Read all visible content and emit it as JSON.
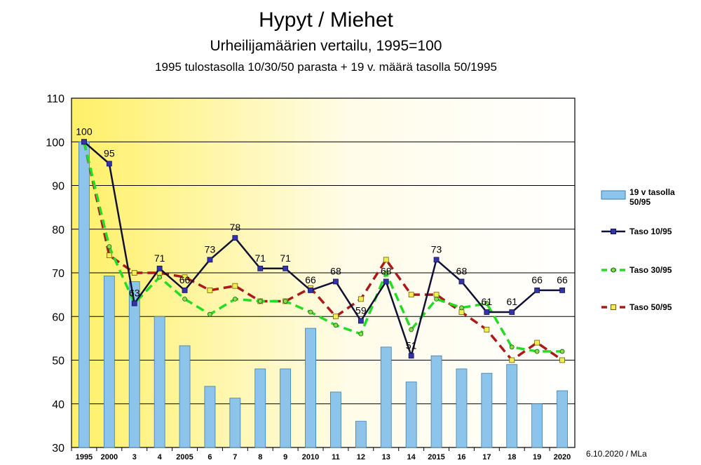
{
  "title": "Hypyt / Miehet",
  "subtitle": "Urheilijamäärien vertailu, 1995=100",
  "subtitle2": "1995 tulostasolla 10/30/50 parasta + 19 v. määrä tasolla 50/1995",
  "footer": "6.10.2020 / MLa",
  "chart_data": {
    "type": "bar",
    "categories": [
      "1995",
      "2000",
      "3",
      "4",
      "2005",
      "6",
      "7",
      "8",
      "9",
      "2010",
      "11",
      "12",
      "13",
      "14",
      "2015",
      "16",
      "17",
      "18",
      "19",
      "2020"
    ],
    "ylim": [
      30,
      110
    ],
    "yticks": [
      30,
      40,
      50,
      60,
      70,
      80,
      90,
      100,
      110
    ],
    "grid": true,
    "legend_position": "right",
    "series": [
      {
        "name": "19 v tasolla 50/95",
        "kind": "bar",
        "color": "#8DC4EC",
        "values": [
          100,
          69.3,
          68,
          60,
          53.3,
          44,
          41.3,
          48,
          48,
          57.3,
          42.7,
          36,
          53,
          45,
          51,
          48,
          47,
          49,
          40,
          43
        ]
      },
      {
        "name": "Taso 10/95",
        "kind": "line",
        "color": "#111133",
        "marker": "#3333aa",
        "dash": "",
        "values": [
          100,
          95,
          63,
          71,
          66,
          73,
          78,
          71,
          71,
          66,
          68,
          59,
          68,
          51,
          73,
          68,
          61,
          61,
          66,
          66
        ],
        "labels": [
          "100",
          "95",
          "63",
          "71",
          "66",
          "73",
          "78",
          "71",
          "71",
          "66",
          "68",
          "59",
          "68",
          "51",
          "73",
          "68",
          "61",
          "61",
          "66",
          "66"
        ]
      },
      {
        "name": "Taso 30/95",
        "kind": "line",
        "color": "#22DD22",
        "marker": "#88dd44",
        "dash": "12,7",
        "values": [
          100,
          76,
          63,
          69,
          64,
          60.5,
          64,
          63.5,
          63.5,
          61,
          58,
          56,
          70,
          57,
          64,
          62,
          63,
          53,
          52,
          52
        ]
      },
      {
        "name": "Taso 50/95",
        "kind": "line",
        "color": "#AA1A1A",
        "marker": "#eeee55",
        "dash": "12,7",
        "values": [
          100,
          74,
          70,
          70,
          69,
          66,
          67,
          63.5,
          63.5,
          66.5,
          60,
          64,
          73,
          65,
          65,
          61,
          57,
          50,
          54,
          50
        ]
      }
    ]
  }
}
